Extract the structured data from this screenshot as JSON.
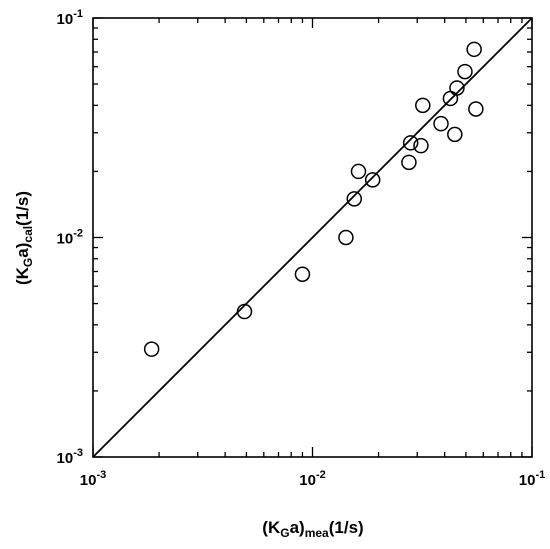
{
  "chart_data": {
    "type": "scatter",
    "x_scale": "log",
    "y_scale": "log",
    "xlim": [
      0.001,
      0.1
    ],
    "ylim": [
      0.001,
      0.1
    ],
    "grid": false,
    "legend": "none",
    "xlabel": {
      "base": "(K",
      "sub1": "G",
      "mid": "a)",
      "sub2": "mea",
      "end": "(1/s)"
    },
    "ylabel": {
      "base": "(K",
      "sub1": "G",
      "mid": "a)",
      "sub2": "cal",
      "end": "(1/s)"
    },
    "x_ticks": [
      {
        "value": 0.001,
        "base": "10",
        "exp": "-3"
      },
      {
        "value": 0.01,
        "base": "10",
        "exp": "-2"
      },
      {
        "value": 0.1,
        "base": "10",
        "exp": "-1"
      }
    ],
    "y_ticks": [
      {
        "value": 0.001,
        "base": "10",
        "exp": "-3"
      },
      {
        "value": 0.01,
        "base": "10",
        "exp": "-2"
      },
      {
        "value": 0.1,
        "base": "10",
        "exp": "-1"
      }
    ],
    "reference_line": {
      "type": "y=x"
    },
    "points": [
      {
        "x": 0.00185,
        "y": 0.0031
      },
      {
        "x": 0.0049,
        "y": 0.0046
      },
      {
        "x": 0.009,
        "y": 0.0068
      },
      {
        "x": 0.0142,
        "y": 0.01
      },
      {
        "x": 0.0155,
        "y": 0.015
      },
      {
        "x": 0.0162,
        "y": 0.02
      },
      {
        "x": 0.0188,
        "y": 0.0183
      },
      {
        "x": 0.0275,
        "y": 0.022
      },
      {
        "x": 0.028,
        "y": 0.027
      },
      {
        "x": 0.0312,
        "y": 0.0262
      },
      {
        "x": 0.0318,
        "y": 0.04
      },
      {
        "x": 0.0385,
        "y": 0.033
      },
      {
        "x": 0.0425,
        "y": 0.043
      },
      {
        "x": 0.0445,
        "y": 0.0295
      },
      {
        "x": 0.0455,
        "y": 0.048
      },
      {
        "x": 0.0495,
        "y": 0.057
      },
      {
        "x": 0.0545,
        "y": 0.072
      },
      {
        "x": 0.0555,
        "y": 0.0385
      }
    ]
  }
}
